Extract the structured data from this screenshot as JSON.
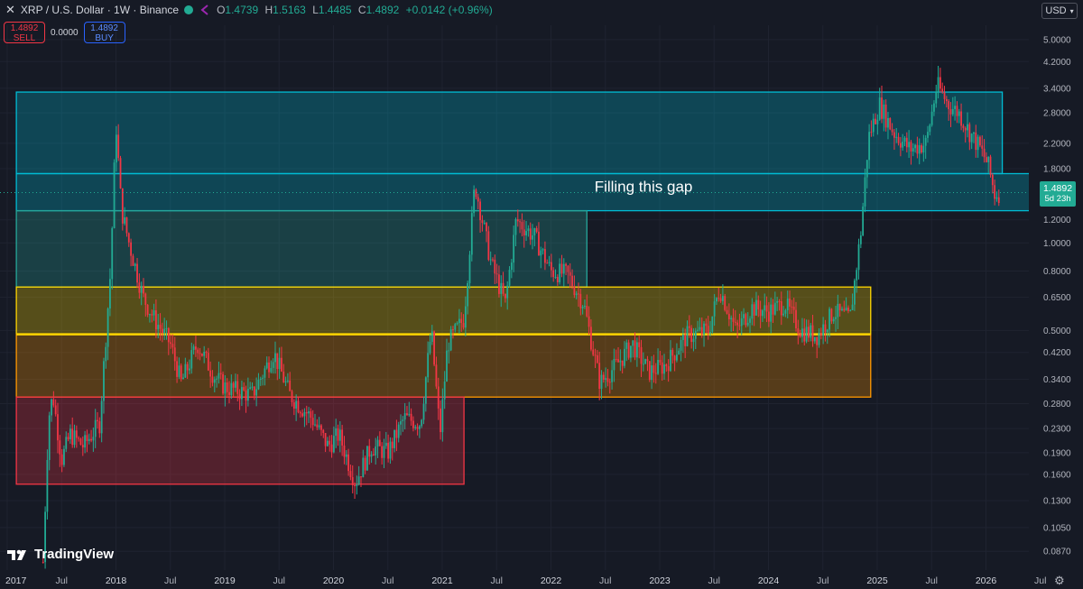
{
  "header": {
    "symbol_title": "XRP / U.S. Dollar · 1W · Binance",
    "close_icon": "close-icon",
    "status_color": "#22ab94",
    "indicator_icon": "compare-arrows-icon",
    "open_label": "O",
    "open": "1.4739",
    "high_label": "H",
    "high": "1.5163",
    "low_label": "L",
    "low": "1.4485",
    "close_label": "C",
    "close": "1.4892",
    "change": "+0.0142 (+0.96%)"
  },
  "trade": {
    "sell_price": "1.4892",
    "sell_label": "SELL",
    "spread": "0.0000",
    "buy_price": "1.4892",
    "buy_label": "BUY"
  },
  "currency": {
    "label": "USD"
  },
  "price_tag": {
    "price": "1.4892",
    "countdown": "5d 23h"
  },
  "brand": {
    "name": "TradingView"
  },
  "colors": {
    "background": "#161a25",
    "up": "#22ab94",
    "down": "#f23645",
    "cyan": "#00bcd4",
    "green": "#26a69a",
    "yellow": "#ffd600",
    "orange": "#ff9800",
    "red": "#f23645"
  },
  "chart_data": {
    "type": "candlestick",
    "title": "XRP / U.S. Dollar · 1W · Binance",
    "y_scale": "log",
    "ylim": [
      0.075,
      5.6
    ],
    "xlim": [
      2017.0,
      2026.75
    ],
    "y_ticks": [
      "5.0000",
      "4.2000",
      "3.4000",
      "2.8000",
      "2.2000",
      "1.8000",
      "1.4892",
      "1.2000",
      "1.0000",
      "0.8000",
      "0.6500",
      "0.5000",
      "0.4200",
      "0.3400",
      "0.2800",
      "0.2300",
      "0.1900",
      "0.1600",
      "0.1300",
      "0.1050",
      "0.0870"
    ],
    "x_ticks": [
      {
        "t": 2017.0,
        "label": "2017"
      },
      {
        "t": 2017.5,
        "label": "Jul"
      },
      {
        "t": 2018.0,
        "label": "2018"
      },
      {
        "t": 2018.5,
        "label": "Jul"
      },
      {
        "t": 2019.0,
        "label": "2019"
      },
      {
        "t": 2019.5,
        "label": "Jul"
      },
      {
        "t": 2020.0,
        "label": "2020"
      },
      {
        "t": 2020.5,
        "label": "Jul"
      },
      {
        "t": 2021.0,
        "label": "2021"
      },
      {
        "t": 2021.5,
        "label": "Jul"
      },
      {
        "t": 2022.0,
        "label": "2022"
      },
      {
        "t": 2022.5,
        "label": "Jul"
      },
      {
        "t": 2023.0,
        "label": "2023"
      },
      {
        "t": 2023.5,
        "label": "Jul"
      },
      {
        "t": 2024.0,
        "label": "2024"
      },
      {
        "t": 2024.5,
        "label": "Jul"
      },
      {
        "t": 2025.0,
        "label": "2025"
      },
      {
        "t": 2025.5,
        "label": "Jul"
      },
      {
        "t": 2026.0,
        "label": "2026"
      },
      {
        "t": 2026.5,
        "label": "Jul"
      }
    ],
    "last_price": 1.4892,
    "price_path": [
      [
        2017.33,
        0.08
      ],
      [
        2017.38,
        0.25
      ],
      [
        2017.42,
        0.3
      ],
      [
        2017.5,
        0.18
      ],
      [
        2017.58,
        0.22
      ],
      [
        2017.7,
        0.2
      ],
      [
        2017.85,
        0.24
      ],
      [
        2017.95,
        0.8
      ],
      [
        2018.0,
        2.6
      ],
      [
        2018.05,
        1.3
      ],
      [
        2018.12,
        1.0
      ],
      [
        2018.25,
        0.65
      ],
      [
        2018.35,
        0.55
      ],
      [
        2018.5,
        0.45
      ],
      [
        2018.6,
        0.33
      ],
      [
        2018.75,
        0.45
      ],
      [
        2018.9,
        0.35
      ],
      [
        2019.0,
        0.32
      ],
      [
        2019.25,
        0.3
      ],
      [
        2019.45,
        0.42
      ],
      [
        2019.6,
        0.3
      ],
      [
        2019.8,
        0.25
      ],
      [
        2019.95,
        0.2
      ],
      [
        2020.05,
        0.22
      ],
      [
        2020.2,
        0.15
      ],
      [
        2020.35,
        0.2
      ],
      [
        2020.5,
        0.19
      ],
      [
        2020.65,
        0.25
      ],
      [
        2020.8,
        0.24
      ],
      [
        2020.9,
        0.5
      ],
      [
        2020.98,
        0.22
      ],
      [
        2021.05,
        0.45
      ],
      [
        2021.2,
        0.55
      ],
      [
        2021.3,
        1.6
      ],
      [
        2021.45,
        0.85
      ],
      [
        2021.58,
        0.62
      ],
      [
        2021.68,
        1.2
      ],
      [
        2021.85,
        1.05
      ],
      [
        2022.0,
        0.8
      ],
      [
        2022.15,
        0.78
      ],
      [
        2022.3,
        0.62
      ],
      [
        2022.45,
        0.33
      ],
      [
        2022.6,
        0.38
      ],
      [
        2022.75,
        0.45
      ],
      [
        2022.9,
        0.36
      ],
      [
        2023.05,
        0.38
      ],
      [
        2023.25,
        0.48
      ],
      [
        2023.45,
        0.5
      ],
      [
        2023.55,
        0.7
      ],
      [
        2023.7,
        0.5
      ],
      [
        2023.85,
        0.6
      ],
      [
        2024.0,
        0.58
      ],
      [
        2024.15,
        0.62
      ],
      [
        2024.3,
        0.5
      ],
      [
        2024.45,
        0.48
      ],
      [
        2024.6,
        0.58
      ],
      [
        2024.75,
        0.55
      ],
      [
        2024.85,
        1.1
      ],
      [
        2024.92,
        2.3
      ],
      [
        2025.02,
        3.0
      ],
      [
        2025.15,
        2.4
      ],
      [
        2025.3,
        2.1
      ],
      [
        2025.45,
        2.2
      ],
      [
        2025.55,
        3.5
      ],
      [
        2025.65,
        3.0
      ],
      [
        2025.75,
        2.8
      ],
      [
        2025.85,
        2.4
      ],
      [
        2025.95,
        2.1
      ],
      [
        2026.02,
        1.85
      ],
      [
        2026.08,
        1.47
      ],
      [
        2026.12,
        1.49
      ]
    ],
    "zones": [
      {
        "color": "#00bcd4",
        "x0": 2017.25,
        "x1": 2026.15,
        "y0": 1.73,
        "y1": 3.3
      },
      {
        "color": "#00bcd4",
        "x0": 2017.25,
        "x1": 2026.48,
        "y0": 1.29,
        "y1": 1.73
      },
      {
        "color": "#26a69a",
        "x0": 2017.25,
        "x1": 2022.33,
        "y0": 0.705,
        "y1": 1.29
      },
      {
        "color": "#ffd600",
        "x0": 2017.25,
        "x1": 2024.94,
        "y0": 0.485,
        "y1": 0.705
      },
      {
        "color": "#ff9800",
        "x0": 2017.25,
        "x1": 2024.94,
        "y0": 0.295,
        "y1": 0.485
      },
      {
        "color": "#f23645",
        "x0": 2017.25,
        "x1": 2021.2,
        "y0": 0.148,
        "y1": 0.295
      }
    ],
    "annotations": [
      {
        "text": "Filling this gap",
        "t": 2022.4,
        "y": 1.5
      }
    ]
  }
}
